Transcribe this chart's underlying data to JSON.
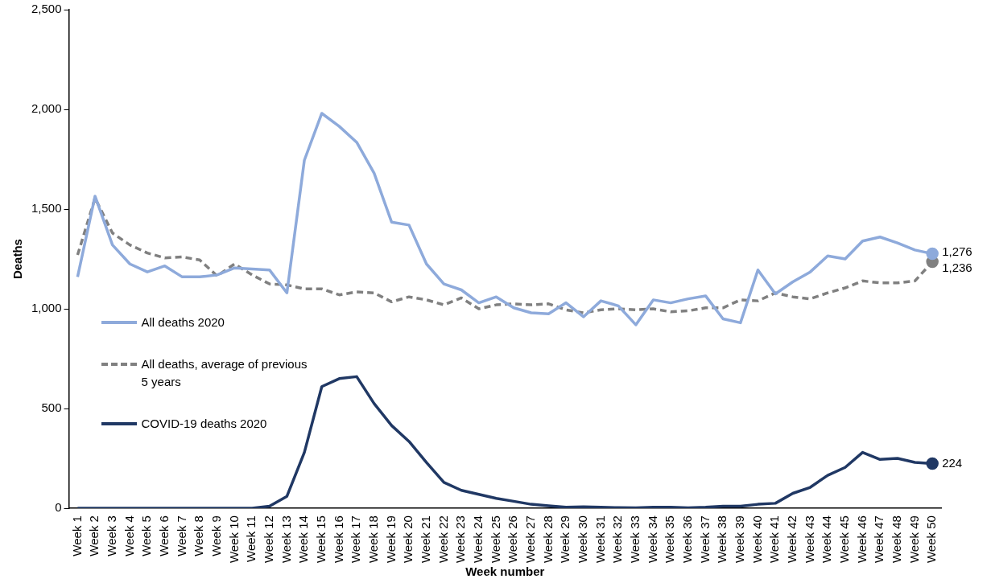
{
  "chart_data": {
    "type": "line",
    "xlabel": "Week number",
    "ylabel": "Deaths",
    "categories": [
      "Week 1",
      "Week 2",
      "Week 3",
      "Week 4",
      "Week 5",
      "Week 6",
      "Week 7",
      "Week 8",
      "Week 9",
      "Week 10",
      "Week 11",
      "Week 12",
      "Week 13",
      "Week 14",
      "Week 15",
      "Week 16",
      "Week 17",
      "Week 18",
      "Week 19",
      "Week 20",
      "Week 21",
      "Week 22",
      "Week 23",
      "Week 24",
      "Week 25",
      "Week 26",
      "Week 27",
      "Week 28",
      "Week 29",
      "Week 30",
      "Week 31",
      "Week 32",
      "Week 33",
      "Week 34",
      "Week 35",
      "Week 36",
      "Week 37",
      "Week 38",
      "Week 39",
      "Week 40",
      "Week 41",
      "Week 42",
      "Week 43",
      "Week 44",
      "Week 45",
      "Week 46",
      "Week 47",
      "Week 48",
      "Week 49",
      "Week 50"
    ],
    "series": [
      {
        "name": "All deaths 2020",
        "color": "#8eaadb",
        "line_style": "solid",
        "values": [
          1160,
          1565,
          1320,
          1225,
          1185,
          1215,
          1160,
          1160,
          1170,
          1205,
          1200,
          1195,
          1080,
          1745,
          1980,
          1915,
          1835,
          1680,
          1435,
          1420,
          1225,
          1125,
          1095,
          1030,
          1060,
          1005,
          980,
          975,
          1030,
          960,
          1040,
          1015,
          920,
          1045,
          1030,
          1050,
          1065,
          950,
          930,
          1195,
          1075,
          1135,
          1185,
          1265,
          1250,
          1340,
          1360,
          1330,
          1295,
          1276
        ],
        "value_labels": [
          null,
          null,
          null,
          null,
          null,
          null,
          null,
          null,
          null,
          null,
          null,
          null,
          null,
          null,
          null,
          null,
          null,
          null,
          null,
          null,
          null,
          null,
          null,
          null,
          null,
          null,
          null,
          null,
          null,
          null,
          null,
          null,
          null,
          null,
          null,
          null,
          null,
          null,
          null,
          null,
          null,
          null,
          null,
          null,
          null,
          null,
          null,
          null,
          null,
          "1,276"
        ]
      },
      {
        "name": "All deaths, average of previous 5 years",
        "color": "#808080",
        "line_style": "dashed",
        "values": [
          1270,
          1555,
          1380,
          1320,
          1280,
          1255,
          1260,
          1245,
          1165,
          1225,
          1170,
          1125,
          1120,
          1100,
          1100,
          1070,
          1085,
          1080,
          1035,
          1060,
          1045,
          1020,
          1055,
          1000,
          1020,
          1025,
          1020,
          1025,
          995,
          980,
          995,
          1000,
          995,
          1000,
          985,
          990,
          1005,
          1005,
          1045,
          1040,
          1080,
          1060,
          1050,
          1080,
          1105,
          1140,
          1130,
          1130,
          1140,
          1236
        ],
        "value_labels": [
          null,
          null,
          null,
          null,
          null,
          null,
          null,
          null,
          null,
          null,
          null,
          null,
          null,
          null,
          null,
          null,
          null,
          null,
          null,
          null,
          null,
          null,
          null,
          null,
          null,
          null,
          null,
          null,
          null,
          null,
          null,
          null,
          null,
          null,
          null,
          null,
          null,
          null,
          null,
          null,
          null,
          null,
          null,
          null,
          null,
          null,
          null,
          null,
          null,
          "1,236"
        ]
      },
      {
        "name": "COVID-19 deaths 2020",
        "color": "#203864",
        "line_style": "solid",
        "values": [
          0,
          0,
          0,
          0,
          0,
          0,
          0,
          0,
          0,
          0,
          0,
          10,
          60,
          280,
          610,
          650,
          660,
          525,
          415,
          335,
          230,
          130,
          90,
          70,
          50,
          35,
          20,
          12,
          5,
          7,
          5,
          3,
          2,
          5,
          5,
          2,
          5,
          10,
          10,
          20,
          25,
          75,
          105,
          165,
          205,
          280,
          245,
          250,
          230,
          224
        ],
        "value_labels": [
          null,
          null,
          null,
          null,
          null,
          null,
          null,
          null,
          null,
          null,
          null,
          null,
          null,
          null,
          null,
          null,
          null,
          null,
          null,
          null,
          null,
          null,
          null,
          null,
          null,
          null,
          null,
          null,
          null,
          null,
          null,
          null,
          null,
          null,
          null,
          null,
          null,
          null,
          null,
          null,
          null,
          null,
          null,
          null,
          null,
          null,
          null,
          null,
          null,
          "224"
        ]
      }
    ],
    "ylim": [
      0,
      2500
    ],
    "yticks": [
      {
        "value": 0,
        "label": "0"
      },
      {
        "value": 500,
        "label": "500"
      },
      {
        "value": 1000,
        "label": "1,000"
      },
      {
        "value": 1500,
        "label": "1,500"
      },
      {
        "value": 2000,
        "label": "2,000"
      },
      {
        "value": 2500,
        "label": "2,500"
      }
    ],
    "grid": false,
    "legend": "left"
  }
}
